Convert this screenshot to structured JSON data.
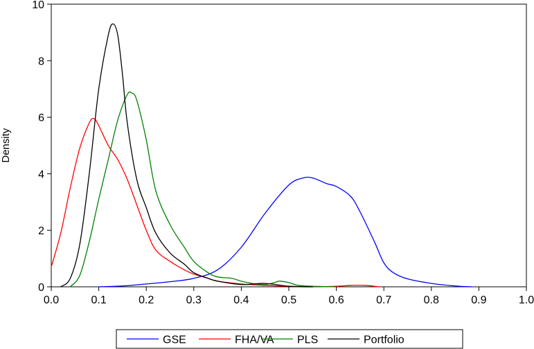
{
  "chart_data": {
    "type": "line",
    "title": "",
    "xlabel": "",
    "ylabel": "Density",
    "xlim": [
      0.0,
      1.0
    ],
    "ylim": [
      0,
      10
    ],
    "x_ticks": [
      0.0,
      0.1,
      0.2,
      0.3,
      0.4,
      0.5,
      0.6,
      0.7,
      0.8,
      0.9,
      1.0
    ],
    "x_tick_labels": [
      "0.0",
      "0.1",
      "0.2",
      "0.3",
      "0.4",
      "0.5",
      "0.6",
      "0.7",
      "0.8",
      "0.9",
      "1.0"
    ],
    "y_ticks": [
      0,
      2,
      4,
      6,
      8,
      10
    ],
    "y_tick_labels": [
      "0",
      "2",
      "4",
      "6",
      "8",
      "10"
    ],
    "grid": false,
    "legend_position": "bottom",
    "series": [
      {
        "name": "GSE",
        "color": "#0000ff",
        "x": [
          0.1,
          0.15,
          0.2,
          0.25,
          0.3,
          0.35,
          0.4,
          0.45,
          0.5,
          0.53,
          0.55,
          0.58,
          0.6,
          0.63,
          0.65,
          0.68,
          0.7,
          0.72,
          0.75,
          0.8,
          0.85,
          0.885
        ],
        "y": [
          0.0,
          0.03,
          0.1,
          0.18,
          0.3,
          0.6,
          1.4,
          2.6,
          3.6,
          3.85,
          3.85,
          3.65,
          3.55,
          3.2,
          2.65,
          1.6,
          0.85,
          0.5,
          0.28,
          0.12,
          0.03,
          0.0
        ]
      },
      {
        "name": "FHA/VA",
        "color": "#ff0000",
        "x": [
          0.0,
          0.02,
          0.04,
          0.06,
          0.08,
          0.09,
          0.1,
          0.12,
          0.14,
          0.16,
          0.18,
          0.2,
          0.22,
          0.25,
          0.28,
          0.3,
          0.33,
          0.35,
          0.4,
          0.45,
          0.5,
          0.55,
          0.6,
          0.63,
          0.66,
          0.69
        ],
        "y": [
          0.7,
          1.9,
          3.5,
          4.9,
          5.8,
          5.95,
          5.7,
          5.0,
          4.5,
          3.8,
          2.9,
          2.0,
          1.3,
          0.9,
          0.6,
          0.45,
          0.3,
          0.2,
          0.1,
          0.05,
          0.02,
          0.0,
          0.02,
          0.05,
          0.05,
          0.0
        ]
      },
      {
        "name": "PLS",
        "color": "#008000",
        "x": [
          0.04,
          0.06,
          0.08,
          0.1,
          0.12,
          0.14,
          0.16,
          0.17,
          0.18,
          0.2,
          0.22,
          0.25,
          0.28,
          0.3,
          0.33,
          0.35,
          0.38,
          0.4,
          0.43,
          0.45,
          0.47,
          0.48,
          0.5,
          0.52,
          0.55,
          0.6
        ],
        "y": [
          0.0,
          0.4,
          1.6,
          3.1,
          4.5,
          5.9,
          6.8,
          6.85,
          6.6,
          5.2,
          3.4,
          2.2,
          1.4,
          0.9,
          0.5,
          0.35,
          0.3,
          0.2,
          0.1,
          0.08,
          0.15,
          0.2,
          0.15,
          0.05,
          0.02,
          0.0
        ]
      },
      {
        "name": "Portfolio",
        "color": "#000000",
        "x": [
          0.02,
          0.04,
          0.06,
          0.08,
          0.1,
          0.12,
          0.13,
          0.14,
          0.15,
          0.16,
          0.18,
          0.2,
          0.22,
          0.25,
          0.28,
          0.3,
          0.33,
          0.35,
          0.4,
          0.45,
          0.5,
          0.55
        ],
        "y": [
          0.0,
          0.3,
          1.5,
          4.0,
          7.0,
          8.9,
          9.3,
          8.9,
          7.5,
          5.8,
          3.8,
          2.8,
          1.9,
          1.2,
          0.8,
          0.5,
          0.3,
          0.2,
          0.08,
          0.12,
          0.02,
          0.0
        ]
      }
    ]
  }
}
